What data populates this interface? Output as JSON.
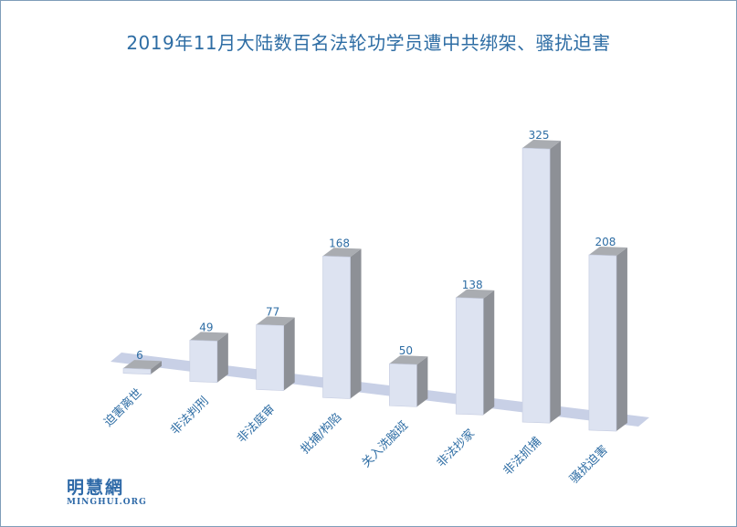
{
  "chart_data": {
    "type": "bar",
    "title": "2019年11月大陆数百名法轮功学员遭中共绑架、骚扰迫害",
    "categories": [
      "迫害离世",
      "非法判刑",
      "非法庭审",
      "批捕/构陷",
      "关入洗脑班",
      "非法抄家",
      "非法抓捕",
      "骚扰迫害"
    ],
    "values": [
      6,
      49,
      77,
      168,
      50,
      138,
      325,
      208
    ],
    "ylim": [
      0,
      325
    ],
    "grid": false,
    "legend": "none",
    "colors": {
      "bar_front": "#dde3f1",
      "bar_side": "#8d9096",
      "bar_top": "#a9acb1",
      "floor": "#c8d0e6",
      "label": "#2e6da4"
    }
  },
  "logo": {
    "cn": "明慧網",
    "en": "MINGHUI.ORG"
  }
}
